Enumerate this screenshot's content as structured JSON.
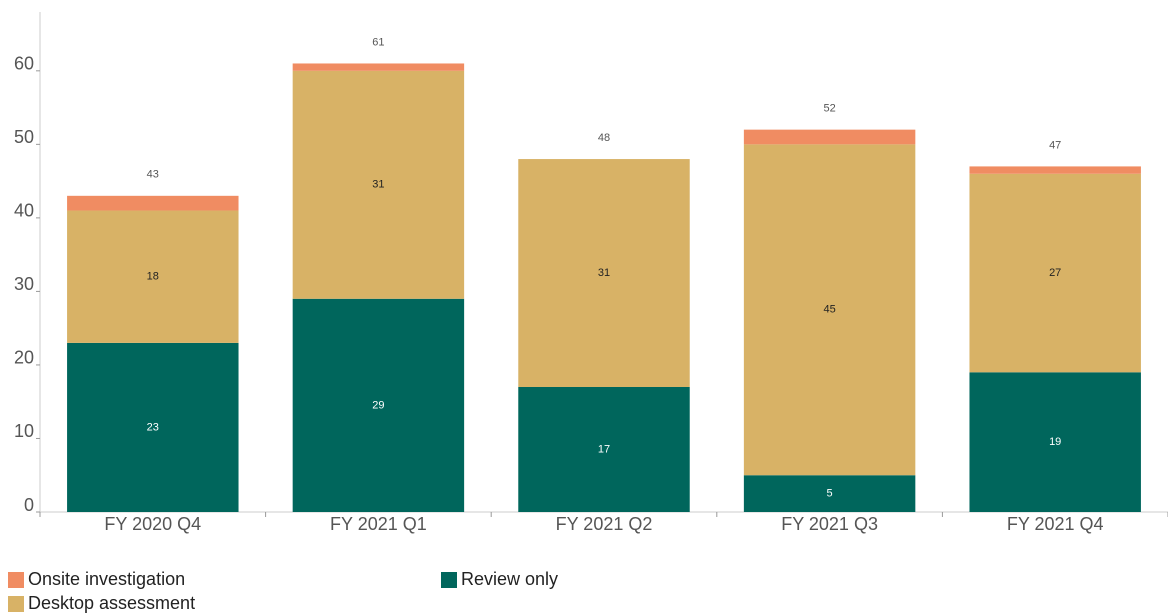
{
  "chart_data": {
    "type": "stacked_bar",
    "categories": [
      "FY 2020 Q4",
      "FY 2021 Q1",
      "FY 2021 Q2",
      "FY 2021 Q3",
      "FY 2021 Q4"
    ],
    "series": [
      {
        "name": "Review only",
        "color": "#00665c",
        "values": [
          23,
          29,
          17,
          5,
          19
        ]
      },
      {
        "name": "Desktop assessment",
        "color": "#d8b266",
        "values": [
          18,
          31,
          31,
          45,
          27
        ]
      },
      {
        "name": "Onsite investigation",
        "color": "#f08c62",
        "values": [
          2,
          1,
          0,
          2,
          1
        ]
      }
    ],
    "totals": [
      43,
      61,
      48,
      52,
      47
    ],
    "ylim": [
      0,
      68
    ],
    "yticks": [
      0,
      10,
      20,
      30,
      40,
      50,
      60
    ],
    "grid": false
  }
}
